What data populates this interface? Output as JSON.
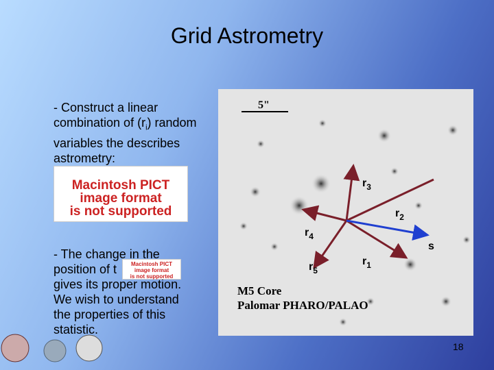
{
  "title": "Grid Astrometry",
  "bullet1": {
    "before": "- Construct a linear combination of (r",
    "sub": "i",
    "after": ") random variables the describes astrometry:"
  },
  "placeholder_large": [
    "Macintosh PICT",
    "image format",
    "is not supported"
  ],
  "bullet2": {
    "before": "- The change in the position of t",
    "after": "gives its proper motion. We wish to understand the properties of this statistic."
  },
  "placeholder_small": [
    "Macintosh PICT",
    "image format",
    "is not supported"
  ],
  "image": {
    "scale": "5\"",
    "caption1": "M5 Core",
    "caption2": "Palomar PHARO/PALAO",
    "labels": [
      {
        "base": "r",
        "sub": "3"
      },
      {
        "base": "r",
        "sub": "2"
      },
      {
        "base": "r",
        "sub": "4"
      },
      {
        "base": "s"
      },
      {
        "base": "r",
        "sub": "5"
      },
      {
        "base": "r",
        "sub": "1"
      }
    ]
  },
  "page_number": "18"
}
